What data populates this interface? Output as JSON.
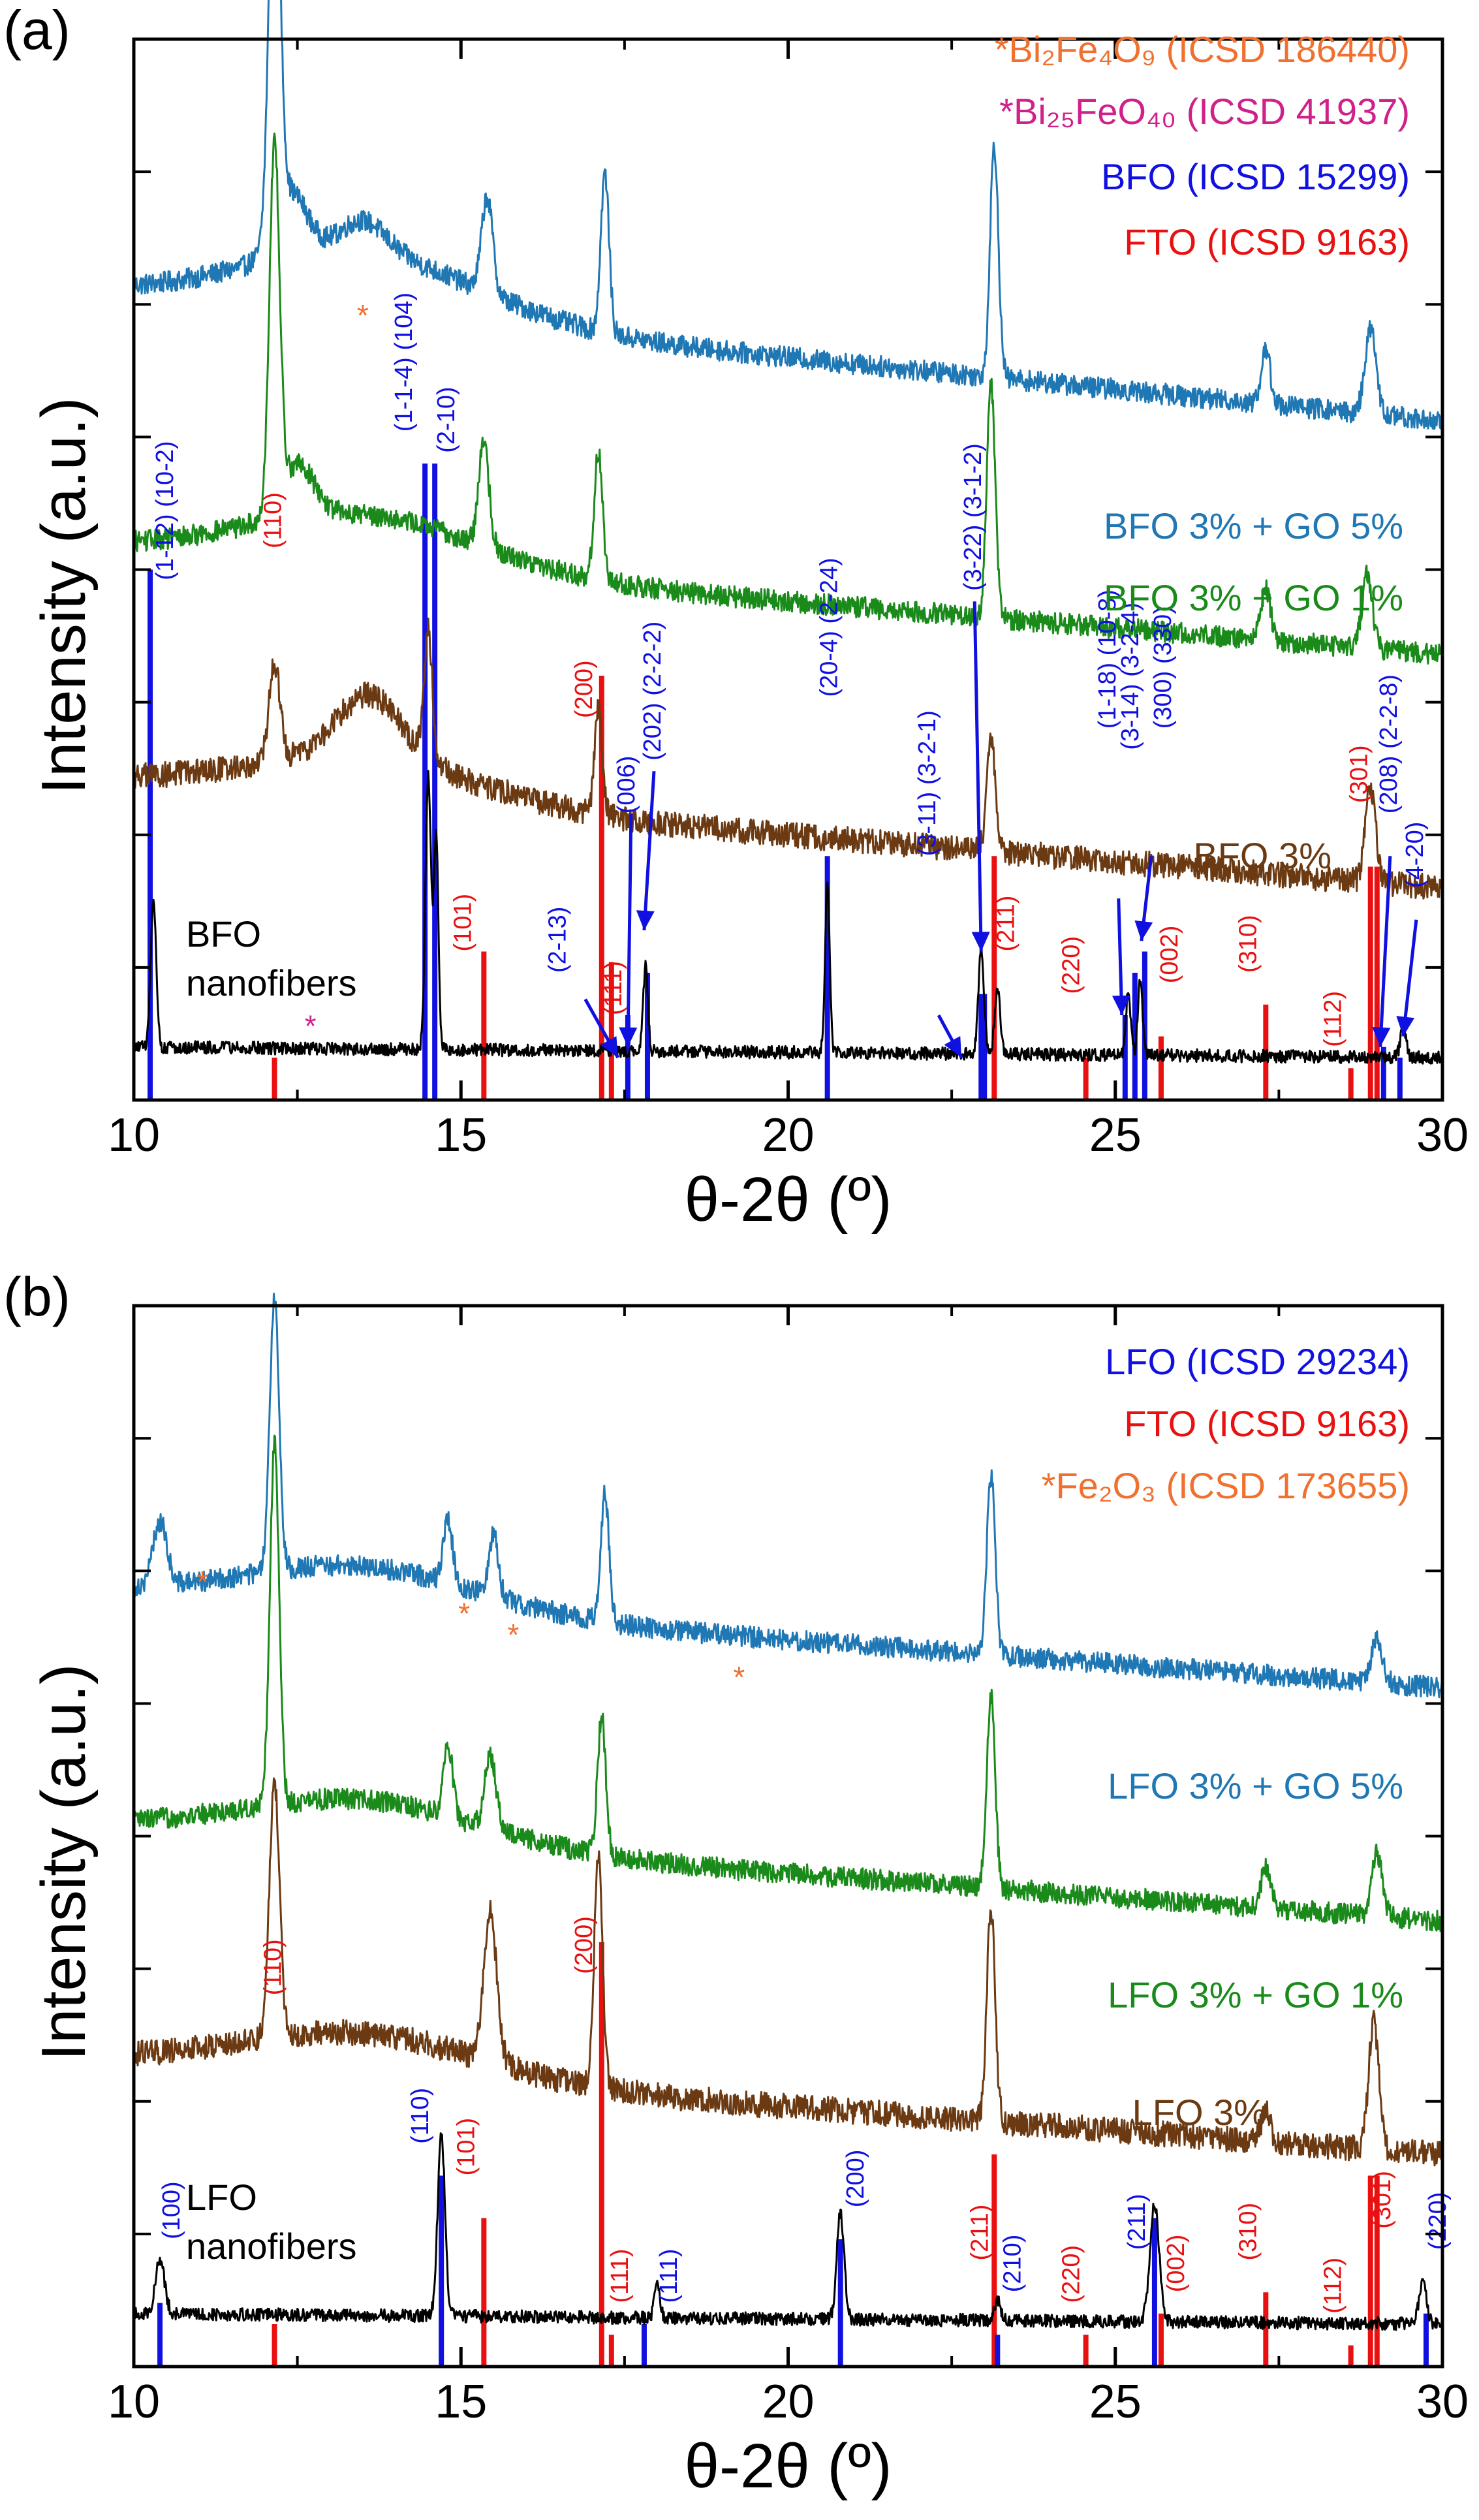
{
  "colors": {
    "blue_ref": "#1010e0",
    "red_ref": "#e81010",
    "trace_go5": "#1f77b4",
    "trace_go1": "#1a8a1a",
    "trace_3": "#6b3a12",
    "trace_nf": "#000000",
    "orange": "#f07030",
    "pink": "#d0208a",
    "arrow": "#1010e0"
  },
  "chart_data": [
    {
      "type": "line",
      "panel_label": "(a)",
      "xlabel": "θ-2θ (º)",
      "ylabel": "Intensity (a.u.)",
      "xlim": [
        10,
        30
      ],
      "x_ticks": [
        "10",
        "15",
        "20",
        "25",
        "30"
      ],
      "legend": [
        {
          "text": "*Bi₂Fe₄O₉ (ICSD 186440)",
          "color": "#f07030"
        },
        {
          "text": "*Bi₂₅FeO₄₀ (ICSD 41937)",
          "color": "#d0208a"
        },
        {
          "text": "BFO (ICSD 15299)",
          "color": "#1010e0"
        },
        {
          "text": "FTO (ICSD 9163)",
          "color": "#e81010"
        }
      ],
      "series": [
        {
          "name": "BFO 3% + GO 5%",
          "color": "#1f77b4",
          "baseline": 0.64,
          "background": [
            0.12,
            0.06
          ],
          "noise": 0.01,
          "peaks": [
            [
              12.15,
              0.38,
              0.12
            ],
            [
              12.4,
              0.06,
              0.35
            ],
            [
              13.5,
              0.03,
              0.5
            ],
            [
              15.4,
              0.09,
              0.12
            ],
            [
              17.2,
              0.15,
              0.09
            ],
            [
              23.15,
              0.22,
              0.09
            ],
            [
              27.3,
              0.05,
              0.1
            ],
            [
              28.9,
              0.08,
              0.12
            ]
          ]
        },
        {
          "name": "BFO 3% + GO 1%",
          "color": "#1a8a1a",
          "baseline": 0.42,
          "background": [
            0.1,
            0.05
          ],
          "noise": 0.01,
          "peaks": [
            [
              12.15,
              0.34,
              0.11
            ],
            [
              12.5,
              0.05,
              0.35
            ],
            [
              15.35,
              0.1,
              0.11
            ],
            [
              17.1,
              0.12,
              0.09
            ],
            [
              23.1,
              0.22,
              0.09
            ],
            [
              27.3,
              0.05,
              0.1
            ],
            [
              28.85,
              0.07,
              0.11
            ]
          ]
        },
        {
          "name": "BFO 3%",
          "color": "#6b3a12",
          "baseline": 0.2,
          "background": [
            0.1,
            0.04
          ],
          "noise": 0.012,
          "peaks": [
            [
              12.15,
              0.09,
              0.12
            ],
            [
              13.6,
              0.06,
              0.7
            ],
            [
              14.5,
              0.12,
              0.09
            ],
            [
              17.1,
              0.1,
              0.08
            ],
            [
              23.1,
              0.11,
              0.09
            ],
            [
              28.9,
              0.09,
              0.11
            ]
          ]
        },
        {
          "name": "BFO nanofibers",
          "color": "#000000",
          "baseline": 0.04,
          "background": [
            0.01,
            0.0
          ],
          "noise": 0.006,
          "peaks": [
            [
              10.3,
              0.14,
              0.06
            ],
            [
              14.5,
              0.26,
              0.06
            ],
            [
              14.62,
              0.2,
              0.05
            ],
            [
              17.82,
              0.08,
              0.05
            ],
            [
              20.6,
              0.16,
              0.05
            ],
            [
              22.95,
              0.1,
              0.06
            ],
            [
              23.2,
              0.06,
              0.06
            ],
            [
              25.2,
              0.06,
              0.05
            ],
            [
              25.38,
              0.07,
              0.05
            ],
            [
              29.4,
              0.03,
              0.06
            ]
          ]
        }
      ],
      "series_labels": [
        {
          "text": "BFO 3% + GO 5%",
          "color": "#1f77b4"
        },
        {
          "text": "BFO 3% + GO 1%",
          "color": "#1a8a1a"
        },
        {
          "text": "BFO 3%",
          "color": "#6b3a12"
        },
        {
          "text": "BFO",
          "color": "#000000"
        },
        {
          "text": "nanofibers",
          "color": "#000000"
        }
      ],
      "blue_refs": [
        [
          10.25,
          0.5
        ],
        [
          14.45,
          0.6
        ],
        [
          14.6,
          0.6
        ],
        [
          17.55,
          0.08
        ],
        [
          17.85,
          0.12
        ],
        [
          20.6,
          0.23
        ],
        [
          22.95,
          0.1
        ],
        [
          23.0,
          0.1
        ],
        [
          25.15,
          0.08
        ],
        [
          25.3,
          0.12
        ],
        [
          25.45,
          0.14
        ],
        [
          29.1,
          0.05
        ],
        [
          29.35,
          0.04
        ]
      ],
      "red_refs": [
        [
          12.15,
          0.04
        ],
        [
          15.35,
          0.14
        ],
        [
          17.15,
          0.4
        ],
        [
          17.3,
          0.13
        ],
        [
          23.15,
          0.23
        ],
        [
          24.55,
          0.04
        ],
        [
          25.7,
          0.06
        ],
        [
          27.3,
          0.09
        ],
        [
          28.6,
          0.03
        ],
        [
          28.9,
          0.22
        ],
        [
          29.0,
          0.22
        ]
      ],
      "hkl_labels": [
        {
          "text": "(1-12) (10-2)",
          "x": 10.5,
          "y": 0.49,
          "color": "#1010e0"
        },
        {
          "text": "(1-1-4) (104)",
          "x": 14.15,
          "y": 0.63,
          "color": "#1010e0"
        },
        {
          "text": "(2-10)",
          "x": 14.8,
          "y": 0.61,
          "color": "#1010e0"
        },
        {
          "text": "(110)",
          "x": 12.15,
          "y": 0.52,
          "color": "#e81010"
        },
        {
          "text": "(200)",
          "x": 16.9,
          "y": 0.36,
          "color": "#e81010"
        },
        {
          "text": "(006)",
          "x": 17.55,
          "y": 0.27,
          "color": "#1010e0"
        },
        {
          "text": "(202) (2-2-2)",
          "x": 17.95,
          "y": 0.32,
          "color": "#1010e0"
        },
        {
          "text": "(20-4) (2-24)",
          "x": 20.65,
          "y": 0.38,
          "color": "#1010e0"
        },
        {
          "text": "(3-22) (3-1-2)",
          "x": 22.85,
          "y": 0.48,
          "color": "#1010e0"
        },
        {
          "text": "(3-11) (3-2-1)",
          "x": 22.15,
          "y": 0.23,
          "color": "#1010e0"
        },
        {
          "text": "(1-18) (10-8)",
          "x": 24.9,
          "y": 0.35,
          "color": "#1010e0"
        },
        {
          "text": "(3-14) (3-2-4)",
          "x": 25.25,
          "y": 0.33,
          "color": "#1010e0"
        },
        {
          "text": "(300) (330)",
          "x": 25.75,
          "y": 0.35,
          "color": "#1010e0"
        },
        {
          "text": "(301)",
          "x": 28.75,
          "y": 0.28,
          "color": "#e81010"
        },
        {
          "text": "(208) (2-2-8)",
          "x": 29.2,
          "y": 0.27,
          "color": "#1010e0"
        },
        {
          "text": "(4-20)",
          "x": 29.6,
          "y": 0.2,
          "color": "#1010e0"
        },
        {
          "text": "(101)",
          "x": 15.05,
          "y": 0.14,
          "color": "#e81010"
        },
        {
          "text": "(111)",
          "x": 17.35,
          "y": 0.08,
          "color": "#e81010"
        },
        {
          "text": "(2-13)",
          "x": 16.5,
          "y": 0.12,
          "color": "#1010e0"
        },
        {
          "text": "(211)",
          "x": 23.35,
          "y": 0.14,
          "color": "#e81010"
        },
        {
          "text": "(220)",
          "x": 24.35,
          "y": 0.1,
          "color": "#e81010"
        },
        {
          "text": "(002)",
          "x": 25.85,
          "y": 0.11,
          "color": "#e81010"
        },
        {
          "text": "(310)",
          "x": 27.05,
          "y": 0.12,
          "color": "#e81010"
        },
        {
          "text": "(112)",
          "x": 28.35,
          "y": 0.05,
          "color": "#e81010"
        }
      ],
      "stars": [
        {
          "x": 13.5,
          "y": 0.73,
          "color": "#f07030"
        },
        {
          "x": 12.7,
          "y": 0.06,
          "color": "#d0208a"
        }
      ],
      "arrows": [
        [
          16.9,
          0.095,
          17.4,
          0.04
        ],
        [
          17.6,
          0.27,
          17.55,
          0.05
        ],
        [
          17.95,
          0.31,
          17.8,
          0.16
        ],
        [
          22.85,
          0.47,
          22.95,
          0.14
        ],
        [
          22.3,
          0.08,
          22.65,
          0.04
        ],
        [
          25.05,
          0.19,
          25.1,
          0.08
        ],
        [
          25.55,
          0.23,
          25.4,
          0.15
        ],
        [
          29.2,
          0.23,
          29.05,
          0.05
        ],
        [
          29.6,
          0.17,
          29.4,
          0.06
        ]
      ]
    },
    {
      "type": "line",
      "panel_label": "(b)",
      "xlabel": "θ-2θ (º)",
      "ylabel": "Intensity (a.u.)",
      "xlim": [
        10,
        30
      ],
      "x_ticks": [
        "10",
        "15",
        "20",
        "25",
        "30"
      ],
      "legend": [
        {
          "text": "LFO (ICSD 29234)",
          "color": "#1010e0"
        },
        {
          "text": "FTO (ICSD 9163)",
          "color": "#e81010"
        },
        {
          "text": "*Fe₂O₃ (ICSD 173655)",
          "color": "#f07030"
        }
      ],
      "series": [
        {
          "name": "LFO 3% + GO 5%",
          "color": "#1f77b4",
          "baseline": 0.64,
          "background": [
            0.09,
            0.04
          ],
          "noise": 0.01,
          "peaks": [
            [
              10.4,
              0.06,
              0.15
            ],
            [
              12.15,
              0.26,
              0.1
            ],
            [
              14.8,
              0.06,
              0.1
            ],
            [
              15.5,
              0.06,
              0.1
            ],
            [
              17.2,
              0.12,
              0.09
            ],
            [
              23.1,
              0.17,
              0.09
            ],
            [
              29.0,
              0.04,
              0.12
            ]
          ]
        },
        {
          "name": "LFO 3% + GO 1%",
          "color": "#1a8a1a",
          "baseline": 0.42,
          "background": [
            0.09,
            0.04
          ],
          "noise": 0.01,
          "peaks": [
            [
              12.15,
              0.34,
              0.1
            ],
            [
              14.8,
              0.07,
              0.1
            ],
            [
              15.45,
              0.07,
              0.12
            ],
            [
              17.15,
              0.13,
              0.09
            ],
            [
              23.1,
              0.18,
              0.09
            ],
            [
              27.3,
              0.04,
              0.1
            ],
            [
              29.0,
              0.06,
              0.11
            ]
          ]
        },
        {
          "name": "LFO 3%",
          "color": "#6b3a12",
          "baseline": 0.2,
          "background": [
            0.09,
            0.04
          ],
          "noise": 0.012,
          "peaks": [
            [
              12.15,
              0.24,
              0.11
            ],
            [
              15.45,
              0.14,
              0.14
            ],
            [
              17.1,
              0.22,
              0.09
            ],
            [
              23.1,
              0.2,
              0.09
            ],
            [
              27.3,
              0.03,
              0.1
            ],
            [
              28.95,
              0.12,
              0.11
            ]
          ]
        },
        {
          "name": "LFO nanofibers",
          "color": "#000000",
          "baseline": 0.04,
          "background": [
            0.01,
            0.0
          ],
          "noise": 0.006,
          "peaks": [
            [
              10.4,
              0.05,
              0.1
            ],
            [
              14.7,
              0.17,
              0.08
            ],
            [
              18.0,
              0.03,
              0.06
            ],
            [
              20.8,
              0.1,
              0.08
            ],
            [
              23.2,
              0.02,
              0.06
            ],
            [
              25.6,
              0.11,
              0.1
            ],
            [
              29.7,
              0.04,
              0.08
            ]
          ]
        }
      ],
      "series_labels": [
        {
          "text": "LFO 3% + GO 5%",
          "color": "#1f77b4"
        },
        {
          "text": "LFO 3% + GO 1%",
          "color": "#1a8a1a"
        },
        {
          "text": "LFO 3%",
          "color": "#6b3a12"
        },
        {
          "text": "LFO",
          "color": "#000000"
        },
        {
          "text": "nanofibers",
          "color": "#000000"
        }
      ],
      "blue_refs": [
        [
          10.4,
          0.06
        ],
        [
          14.7,
          0.18
        ],
        [
          17.8,
          0.04
        ],
        [
          20.8,
          0.12
        ],
        [
          23.2,
          0.03
        ],
        [
          25.6,
          0.14
        ],
        [
          29.75,
          0.05
        ]
      ],
      "red_refs": [
        [
          12.15,
          0.04
        ],
        [
          15.35,
          0.14
        ],
        [
          17.15,
          0.4
        ],
        [
          17.3,
          0.03
        ],
        [
          23.15,
          0.2
        ],
        [
          24.55,
          0.03
        ],
        [
          25.7,
          0.05
        ],
        [
          27.3,
          0.07
        ],
        [
          28.6,
          0.02
        ],
        [
          28.9,
          0.18
        ],
        [
          29.0,
          0.18
        ]
      ],
      "hkl_labels": [
        {
          "text": "(100)",
          "x": 10.6,
          "y": 0.12,
          "color": "#1010e0"
        },
        {
          "text": "(110)",
          "x": 14.4,
          "y": 0.21,
          "color": "#1010e0"
        },
        {
          "text": "(110)",
          "x": 12.15,
          "y": 0.35,
          "color": "#e81010"
        },
        {
          "text": "(101)",
          "x": 15.1,
          "y": 0.18,
          "color": "#e81010"
        },
        {
          "text": "(200)",
          "x": 16.9,
          "y": 0.37,
          "color": "#e81010"
        },
        {
          "text": "(111)",
          "x": 17.45,
          "y": 0.06,
          "color": "#e81010"
        },
        {
          "text": "(111)",
          "x": 18.2,
          "y": 0.06,
          "color": "#1010e0"
        },
        {
          "text": "(200)",
          "x": 21.05,
          "y": 0.15,
          "color": "#1010e0"
        },
        {
          "text": "(211)",
          "x": 22.95,
          "y": 0.1,
          "color": "#e81010"
        },
        {
          "text": "(210)",
          "x": 23.45,
          "y": 0.07,
          "color": "#1010e0"
        },
        {
          "text": "(220)",
          "x": 24.35,
          "y": 0.06,
          "color": "#e81010"
        },
        {
          "text": "(211)",
          "x": 25.35,
          "y": 0.11,
          "color": "#1010e0"
        },
        {
          "text": "(002)",
          "x": 25.95,
          "y": 0.07,
          "color": "#e81010"
        },
        {
          "text": "(310)",
          "x": 27.05,
          "y": 0.1,
          "color": "#e81010"
        },
        {
          "text": "(112)",
          "x": 28.35,
          "y": 0.05,
          "color": "#e81010"
        },
        {
          "text": "(301)",
          "x": 29.1,
          "y": 0.13,
          "color": "#e81010"
        },
        {
          "text": "(220)",
          "x": 29.95,
          "y": 0.11,
          "color": "#1010e0"
        }
      ],
      "stars": [
        {
          "x": 11.05,
          "y": 0.73,
          "color": "#f07030"
        },
        {
          "x": 15.05,
          "y": 0.7,
          "color": "#f07030"
        },
        {
          "x": 15.8,
          "y": 0.68,
          "color": "#f07030"
        },
        {
          "x": 19.25,
          "y": 0.64,
          "color": "#f07030"
        }
      ],
      "arrows": []
    }
  ]
}
